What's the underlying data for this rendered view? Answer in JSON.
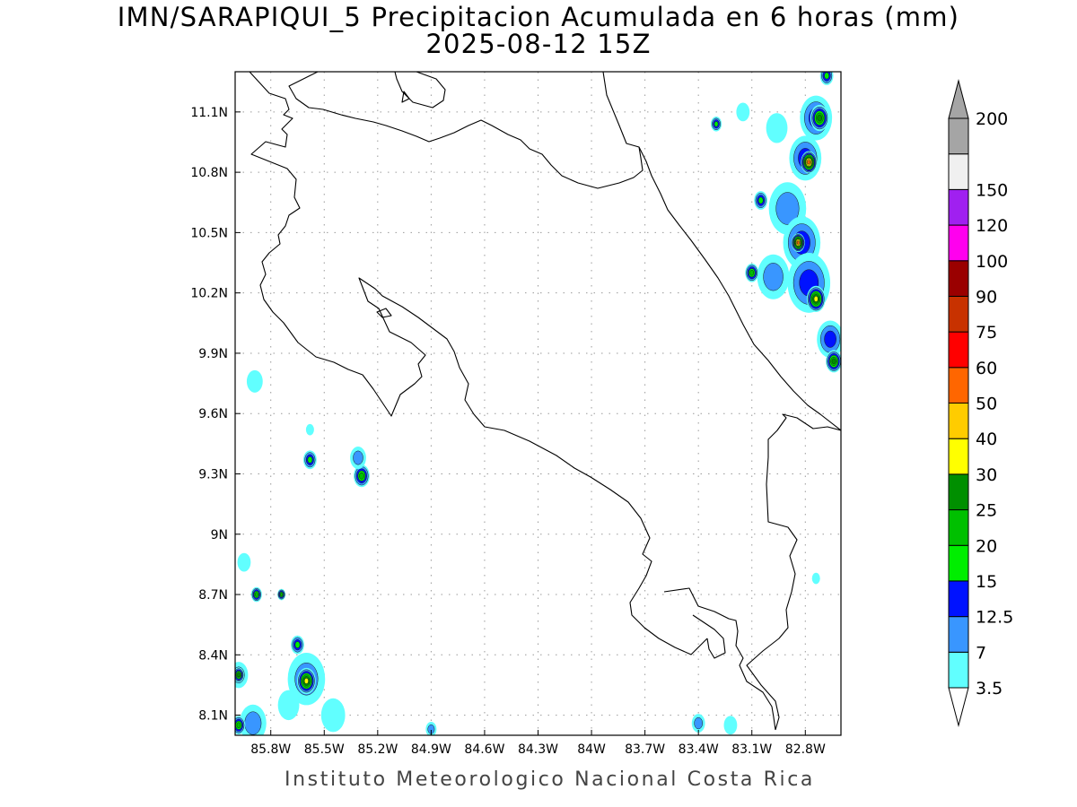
{
  "header": {
    "title": "IMN/SARAPIQUI_5 Precipitacion Acumulada en 6 horas (mm)",
    "subtitle": "2025-08-12 15Z"
  },
  "footer": {
    "credit": "Instituto Meteorologico Nacional Costa Rica"
  },
  "map": {
    "extent": {
      "lon_min": -86.0,
      "lon_max": -82.6,
      "lat_min": 8.0,
      "lat_max": 11.3
    },
    "grid": "dotted",
    "lat_ticks": [
      {
        "value": 11.1,
        "label": "11.1N"
      },
      {
        "value": 10.8,
        "label": "10.8N"
      },
      {
        "value": 10.5,
        "label": "10.5N"
      },
      {
        "value": 10.2,
        "label": "10.2N"
      },
      {
        "value": 9.9,
        "label": "9.9N"
      },
      {
        "value": 9.6,
        "label": "9.6N"
      },
      {
        "value": 9.3,
        "label": "9.3N"
      },
      {
        "value": 9.0,
        "label": "9N"
      },
      {
        "value": 8.7,
        "label": "8.7N"
      },
      {
        "value": 8.4,
        "label": "8.4N"
      },
      {
        "value": 8.1,
        "label": "8.1N"
      }
    ],
    "lon_ticks": [
      {
        "value": -85.8,
        "label": "85.8W"
      },
      {
        "value": -85.5,
        "label": "85.5W"
      },
      {
        "value": -85.2,
        "label": "85.2W"
      },
      {
        "value": -84.9,
        "label": "84.9W"
      },
      {
        "value": -84.6,
        "label": "84.6W"
      },
      {
        "value": -84.3,
        "label": "84.3W"
      },
      {
        "value": -84.0,
        "label": "84W"
      },
      {
        "value": -83.7,
        "label": "83.7W"
      },
      {
        "value": -83.4,
        "label": "83.4W"
      },
      {
        "value": -83.1,
        "label": "83.1W"
      },
      {
        "value": -82.8,
        "label": "82.8W"
      }
    ],
    "precip_cells": [
      {
        "lon": -82.74,
        "lat": 11.07,
        "level": 2,
        "spread": 0.12
      },
      {
        "lon": -82.72,
        "lat": 11.07,
        "level": 5,
        "spread": 0.07
      },
      {
        "lon": -82.68,
        "lat": 11.28,
        "level": 3,
        "spread": 0.05
      },
      {
        "lon": -82.8,
        "lat": 10.87,
        "level": 2,
        "spread": 0.12
      },
      {
        "lon": -82.78,
        "lat": 10.85,
        "level": 8,
        "spread": 0.06
      },
      {
        "lon": -82.9,
        "lat": 10.62,
        "level": 1,
        "spread": 0.14
      },
      {
        "lon": -83.05,
        "lat": 10.66,
        "level": 3,
        "spread": 0.05
      },
      {
        "lon": -82.82,
        "lat": 10.45,
        "level": 2,
        "spread": 0.14
      },
      {
        "lon": -82.84,
        "lat": 10.45,
        "level": 8,
        "spread": 0.05
      },
      {
        "lon": -82.78,
        "lat": 10.25,
        "level": 2,
        "spread": 0.16
      },
      {
        "lon": -82.74,
        "lat": 10.17,
        "level": 6,
        "spread": 0.07
      },
      {
        "lon": -82.98,
        "lat": 10.28,
        "level": 1,
        "spread": 0.12
      },
      {
        "lon": -83.1,
        "lat": 10.3,
        "level": 4,
        "spread": 0.05
      },
      {
        "lon": -82.66,
        "lat": 9.97,
        "level": 2,
        "spread": 0.1
      },
      {
        "lon": -82.64,
        "lat": 9.86,
        "level": 5,
        "spread": 0.06
      },
      {
        "lon": -82.96,
        "lat": 11.02,
        "level": 0,
        "spread": 0.08
      },
      {
        "lon": -83.3,
        "lat": 11.04,
        "level": 3,
        "spread": 0.04
      },
      {
        "lon": -83.15,
        "lat": 11.1,
        "level": 0,
        "spread": 0.05
      },
      {
        "lon": -83.4,
        "lat": 8.06,
        "level": 1,
        "spread": 0.05
      },
      {
        "lon": -83.22,
        "lat": 8.05,
        "level": 0,
        "spread": 0.05
      },
      {
        "lon": -82.74,
        "lat": 8.78,
        "level": 0,
        "spread": 0.03
      },
      {
        "lon": -85.29,
        "lat": 9.29,
        "level": 4,
        "spread": 0.06
      },
      {
        "lon": -85.31,
        "lat": 9.38,
        "level": 1,
        "spread": 0.06
      },
      {
        "lon": -85.58,
        "lat": 9.37,
        "level": 3,
        "spread": 0.05
      },
      {
        "lon": -85.58,
        "lat": 9.52,
        "level": 0,
        "spread": 0.03
      },
      {
        "lon": -85.89,
        "lat": 9.76,
        "level": 0,
        "spread": 0.06
      },
      {
        "lon": -85.6,
        "lat": 8.28,
        "level": 1,
        "spread": 0.14
      },
      {
        "lon": -85.6,
        "lat": 8.27,
        "level": 6,
        "spread": 0.07
      },
      {
        "lon": -85.65,
        "lat": 8.45,
        "level": 3,
        "spread": 0.05
      },
      {
        "lon": -85.98,
        "lat": 8.3,
        "level": 1,
        "spread": 0.07
      },
      {
        "lon": -85.98,
        "lat": 8.3,
        "level": 5,
        "spread": 0.04
      },
      {
        "lon": -85.9,
        "lat": 8.06,
        "level": 1,
        "spread": 0.1
      },
      {
        "lon": -85.98,
        "lat": 8.05,
        "level": 4,
        "spread": 0.05
      },
      {
        "lon": -85.88,
        "lat": 8.7,
        "level": 4,
        "spread": 0.04
      },
      {
        "lon": -85.74,
        "lat": 8.7,
        "level": 4,
        "spread": 0.03
      },
      {
        "lon": -85.45,
        "lat": 8.1,
        "level": 0,
        "spread": 0.09
      },
      {
        "lon": -84.9,
        "lat": 8.03,
        "level": 1,
        "spread": 0.04
      },
      {
        "lon": -85.95,
        "lat": 8.86,
        "level": 0,
        "spread": 0.05
      },
      {
        "lon": -85.7,
        "lat": 8.15,
        "level": 0,
        "spread": 0.08
      }
    ]
  },
  "legend": {
    "levels": [
      "3.5",
      "7",
      "12.5",
      "15",
      "20",
      "25",
      "30",
      "40",
      "50",
      "60",
      "75",
      "90",
      "100",
      "120",
      "150",
      "200"
    ],
    "colors": [
      "#61ffff",
      "#3996ff",
      "#0012ff",
      "#00ee00",
      "#00c000",
      "#008f00",
      "#ffff00",
      "#ffcc00",
      "#ff6600",
      "#ff0000",
      "#c83200",
      "#9a0000",
      "#ff00ee",
      "#a020f0",
      "#f0f0f0",
      "#a5a5a5"
    ]
  }
}
